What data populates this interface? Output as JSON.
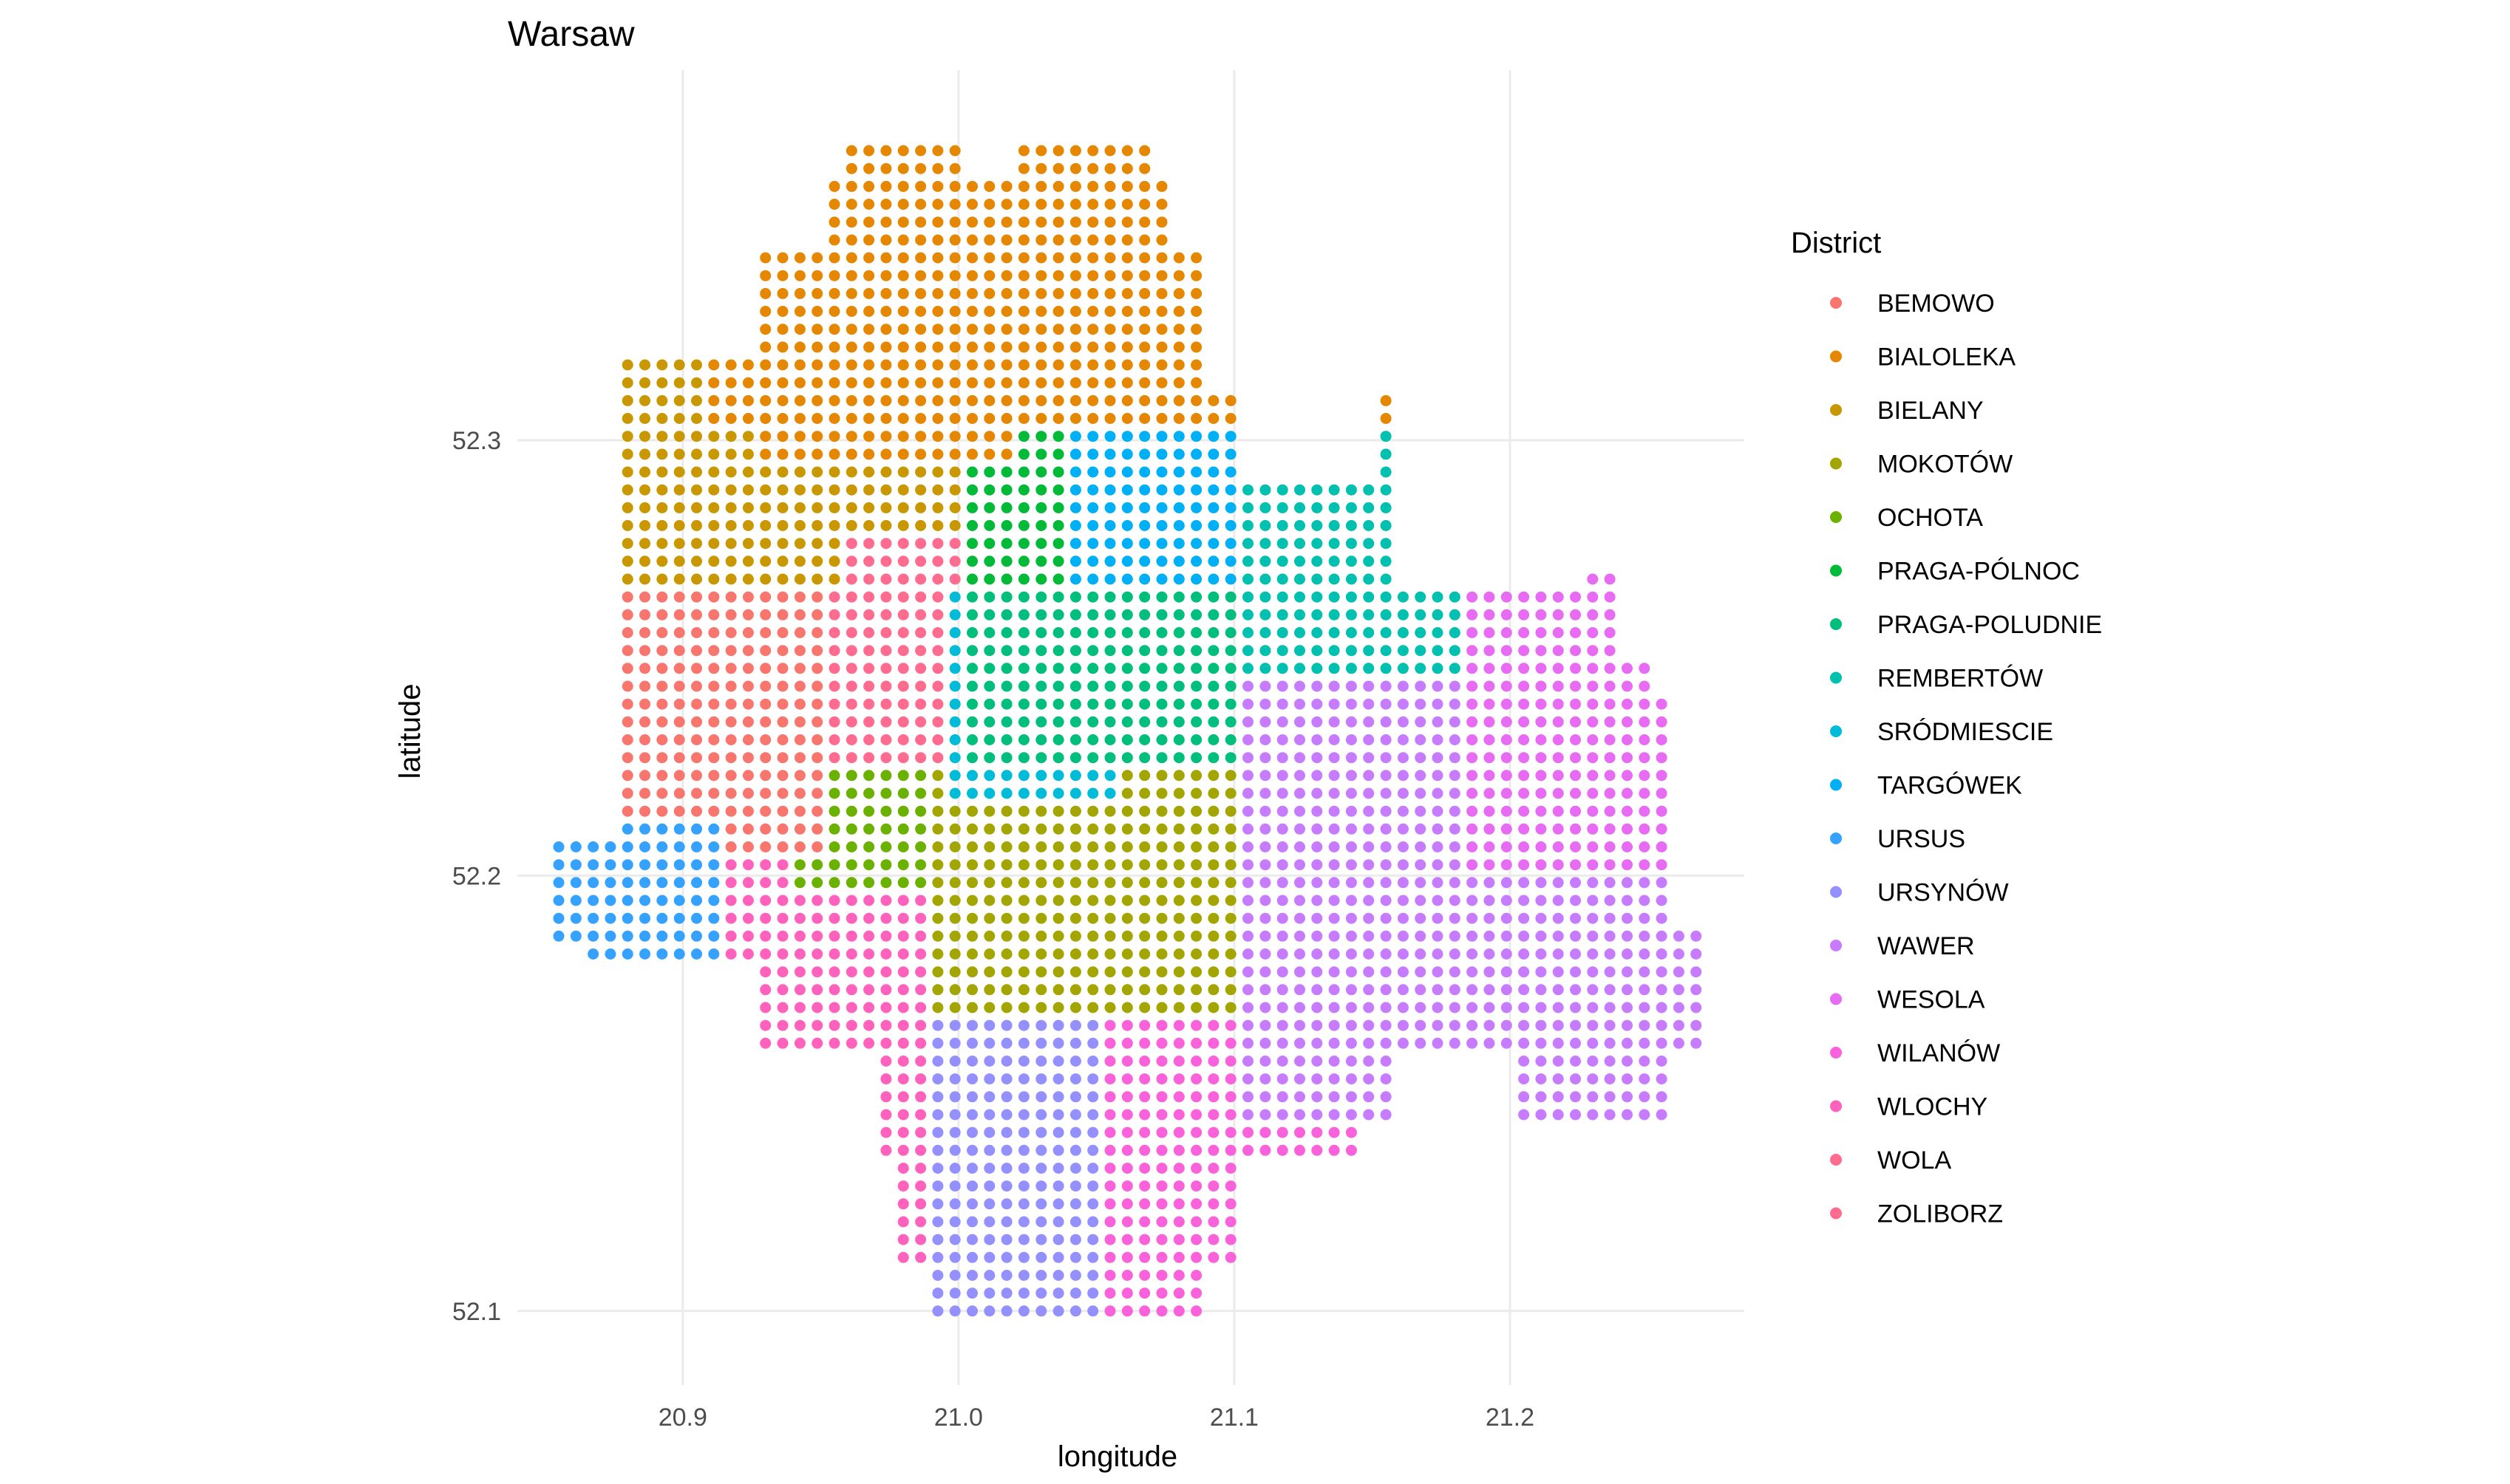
{
  "chart_data": {
    "type": "scatter",
    "title": "Warsaw",
    "xlabel": "longitude",
    "ylabel": "latitude",
    "xlim": [
      20.84,
      21.285
    ],
    "ylim": [
      52.083,
      52.385
    ],
    "x_ticks": [
      "20.9",
      "21.0",
      "21.1",
      "21.2"
    ],
    "y_ticks": [
      "52.1",
      "52.2",
      "52.3"
    ],
    "grid": true,
    "legend_title": "District",
    "legend_position": "right",
    "grid_step": {
      "lon": 0.00625,
      "lat": 0.0041
    },
    "series": [
      {
        "name": "BEMOWO",
        "color": "#F8766D",
        "lon_range": [
          20.87,
          20.955
        ],
        "lat_range": [
          52.205,
          52.285
        ],
        "region": "west"
      },
      {
        "name": "BIALOLEKA",
        "color": "#E58700",
        "lon_range": [
          20.915,
          21.09
        ],
        "lat_range": [
          52.295,
          52.375
        ],
        "region": "north"
      },
      {
        "name": "BIELANY",
        "color": "#C99800",
        "lon_range": [
          20.88,
          21.0
        ],
        "lat_range": [
          52.27,
          52.325
        ],
        "region": "northwest"
      },
      {
        "name": "MOKOTÓW",
        "color": "#A3A500",
        "lon_range": [
          20.985,
          21.1
        ],
        "lat_range": [
          52.17,
          52.22
        ],
        "region": "south-central"
      },
      {
        "name": "OCHOTA",
        "color": "#6BB100",
        "lon_range": [
          20.94,
          21.0
        ],
        "lat_range": [
          52.2,
          52.225
        ],
        "region": "central-west"
      },
      {
        "name": "PRAGA-PÓLNOC",
        "color": "#00BA38",
        "lon_range": [
          21.0,
          21.04
        ],
        "lat_range": [
          52.25,
          52.29
        ],
        "region": "central"
      },
      {
        "name": "PRAGA-POLUDNIE",
        "color": "#00BF7D",
        "lon_range": [
          21.01,
          21.13
        ],
        "lat_range": [
          52.225,
          52.265
        ],
        "region": "central-east"
      },
      {
        "name": "REMBERTÓW",
        "color": "#00C0AF",
        "lon_range": [
          21.11,
          21.18
        ],
        "lat_range": [
          52.245,
          52.29
        ],
        "region": "east"
      },
      {
        "name": "SRÓDMIESCIE",
        "color": "#00BCD8",
        "lon_range": [
          20.98,
          21.06
        ],
        "lat_range": [
          52.215,
          52.26
        ],
        "region": "center"
      },
      {
        "name": "TARGÓWEK",
        "color": "#00B0F6",
        "lon_range": [
          21.01,
          21.1
        ],
        "lat_range": [
          52.26,
          52.31
        ],
        "region": "northeast"
      },
      {
        "name": "URSUS",
        "color": "#35A2FF",
        "lon_range": [
          20.855,
          20.915
        ],
        "lat_range": [
          52.185,
          52.21
        ],
        "region": "far-west"
      },
      {
        "name": "URSYNÓW",
        "color": "#9590FF",
        "lon_range": [
          20.985,
          21.09
        ],
        "lat_range": [
          52.1,
          52.17
        ],
        "region": "south"
      },
      {
        "name": "WAWER",
        "color": "#C77CFF",
        "lon_range": [
          21.1,
          21.265
        ],
        "lat_range": [
          52.15,
          52.24
        ],
        "region": "southeast"
      },
      {
        "name": "WESOLA",
        "color": "#E76BF3",
        "lon_range": [
          21.19,
          21.255
        ],
        "lat_range": [
          52.205,
          52.265
        ],
        "region": "far-east"
      },
      {
        "name": "WILANÓW",
        "color": "#FA62DB",
        "lon_range": [
          21.05,
          21.16
        ],
        "lat_range": [
          52.11,
          52.175
        ],
        "region": "south-east"
      },
      {
        "name": "WLOCHY",
        "color": "#FF62BC",
        "lon_range": [
          20.9,
          20.99
        ],
        "lat_range": [
          52.14,
          52.21
        ],
        "region": "southwest"
      },
      {
        "name": "WOLA",
        "color": "#FF6C90",
        "lon_range": [
          20.92,
          20.995
        ],
        "lat_range": [
          52.21,
          52.28
        ],
        "region": "west-central"
      },
      {
        "name": "ZOLIBORZ",
        "color": "#FF6C90",
        "lon_range": [
          20.97,
          21.0
        ],
        "lat_range": [
          52.26,
          52.275
        ],
        "region": "north-central"
      }
    ]
  }
}
